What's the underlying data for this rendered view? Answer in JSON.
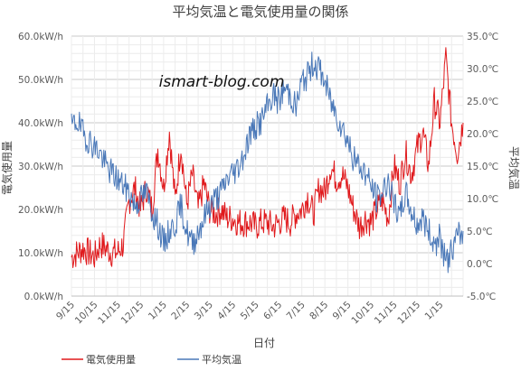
{
  "chart_data": {
    "type": "line",
    "title": "平均気温と電気使用量の関係",
    "watermark": "ismart-blog.com",
    "xlabel": "日付",
    "ylabel_left": "電気使用量",
    "ylabel_right": "平均気温",
    "x_ticks": [
      "9/15",
      "10/15",
      "11/15",
      "12/15",
      "1/15",
      "2/15",
      "3/15",
      "4/15",
      "5/15",
      "6/15",
      "7/15",
      "8/15",
      "9/15",
      "10/15",
      "11/15",
      "12/15",
      "1/15"
    ],
    "y_left_ticks": [
      "0.0kW/h",
      "10.0kW/h",
      "20.0kW/h",
      "30.0kW/h",
      "40.0kW/h",
      "50.0kW/h",
      "60.0kW/h"
    ],
    "y_right_ticks": [
      "-5.0℃",
      "0.0℃",
      "5.0℃",
      "10.0℃",
      "15.0℃",
      "20.0℃",
      "25.0℃",
      "30.0℃",
      "35.0℃"
    ],
    "y_left_range": [
      0,
      60
    ],
    "y_right_range": [
      -5,
      35
    ],
    "x_range_months": [
      0,
      17
    ],
    "grid": true,
    "legend_position": "bottom-left",
    "series": [
      {
        "name": "電気使用量",
        "axis": "left",
        "color": "#e0191c",
        "x": [
          0,
          0.25,
          0.5,
          0.75,
          1,
          1.25,
          1.5,
          1.75,
          2,
          2.25,
          2.5,
          2.75,
          3,
          3.25,
          3.5,
          3.75,
          4,
          4.25,
          4.5,
          4.75,
          5,
          5.25,
          5.5,
          5.75,
          6,
          6.25,
          6.5,
          6.75,
          7,
          7.25,
          7.5,
          7.75,
          8,
          8.25,
          8.5,
          8.75,
          9,
          9.25,
          9.5,
          9.75,
          10,
          10.25,
          10.5,
          10.75,
          11,
          11.25,
          11.5,
          11.75,
          12,
          12.25,
          12.5,
          12.75,
          13,
          13.25,
          13.5,
          13.75,
          14,
          14.25,
          14.5,
          14.75,
          15,
          15.25,
          15.5,
          15.75,
          16,
          16.25,
          16.5,
          16.75,
          17
        ],
        "values": [
          9,
          10,
          11,
          10,
          9,
          12,
          11,
          10,
          10,
          12,
          22,
          25,
          20,
          25,
          20,
          34,
          25,
          38,
          22,
          35,
          21,
          28,
          20,
          26,
          20,
          19,
          20,
          18,
          18,
          17,
          17,
          17,
          16,
          17,
          17,
          16,
          17,
          18,
          17,
          19,
          20,
          23,
          19,
          25,
          24,
          30,
          27,
          28,
          25,
          20,
          16,
          18,
          17,
          20,
          22,
          18,
          30,
          26,
          33,
          28,
          34,
          38,
          30,
          45,
          40,
          55,
          40,
          33,
          40
        ]
      },
      {
        "name": "平均気温",
        "axis": "right",
        "color": "#4a78b8",
        "x": [
          0,
          0.25,
          0.5,
          0.75,
          1,
          1.25,
          1.5,
          1.75,
          2,
          2.25,
          2.5,
          2.75,
          3,
          3.25,
          3.5,
          3.75,
          4,
          4.25,
          4.5,
          4.75,
          5,
          5.25,
          5.5,
          5.75,
          6,
          6.25,
          6.5,
          6.75,
          7,
          7.25,
          7.5,
          7.75,
          8,
          8.25,
          8.5,
          8.75,
          9,
          9.25,
          9.5,
          9.75,
          10,
          10.25,
          10.5,
          10.75,
          11,
          11.25,
          11.5,
          11.75,
          12,
          12.25,
          12.5,
          12.75,
          13,
          13.25,
          13.5,
          13.75,
          14,
          14.25,
          14.5,
          14.75,
          15,
          15.25,
          15.5,
          15.75,
          16,
          16.25,
          16.5,
          16.75,
          17
        ],
        "values": [
          21,
          22,
          20,
          19,
          18,
          17,
          15,
          14,
          13,
          12,
          11,
          9,
          10,
          11,
          8,
          6,
          3,
          5,
          6,
          9,
          5,
          3,
          5,
          7,
          9,
          10,
          11,
          13,
          14,
          15,
          17,
          20,
          21,
          22,
          24,
          26,
          25,
          27,
          26,
          24,
          28,
          29,
          31,
          30,
          28,
          25,
          23,
          21,
          19,
          16,
          15,
          14,
          12,
          10,
          11,
          13,
          9,
          7,
          11,
          8,
          6,
          7,
          5,
          3,
          4,
          0,
          2,
          4,
          5
        ]
      }
    ]
  }
}
